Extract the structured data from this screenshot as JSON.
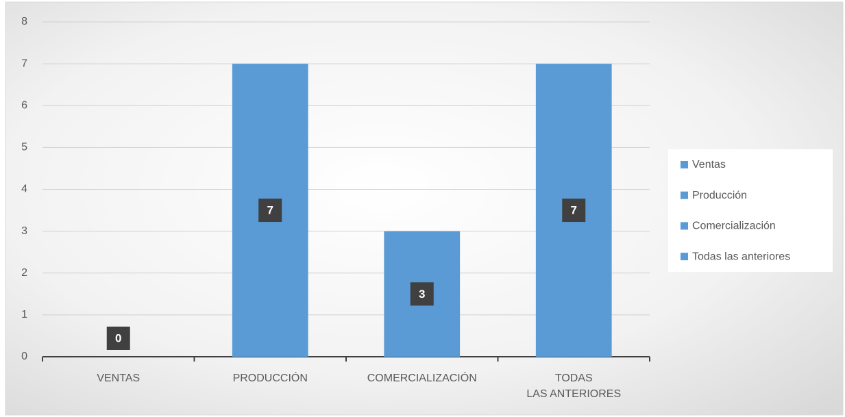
{
  "chart_data": {
    "type": "bar",
    "categories": [
      "VENTAS",
      "PRODUCCIÓN",
      "COMERCIALIZACIÓN",
      "TODAS LAS ANTERIORES"
    ],
    "values": [
      0,
      7,
      3,
      7
    ],
    "color": "#5b9bd5",
    "legend": [
      "Ventas",
      "Producción",
      "Comercialización",
      "Todas las anteriores"
    ],
    "ylim": [
      0,
      8
    ],
    "yticks": [
      0,
      1,
      2,
      3,
      4,
      5,
      6,
      7,
      8
    ],
    "grid": true
  }
}
